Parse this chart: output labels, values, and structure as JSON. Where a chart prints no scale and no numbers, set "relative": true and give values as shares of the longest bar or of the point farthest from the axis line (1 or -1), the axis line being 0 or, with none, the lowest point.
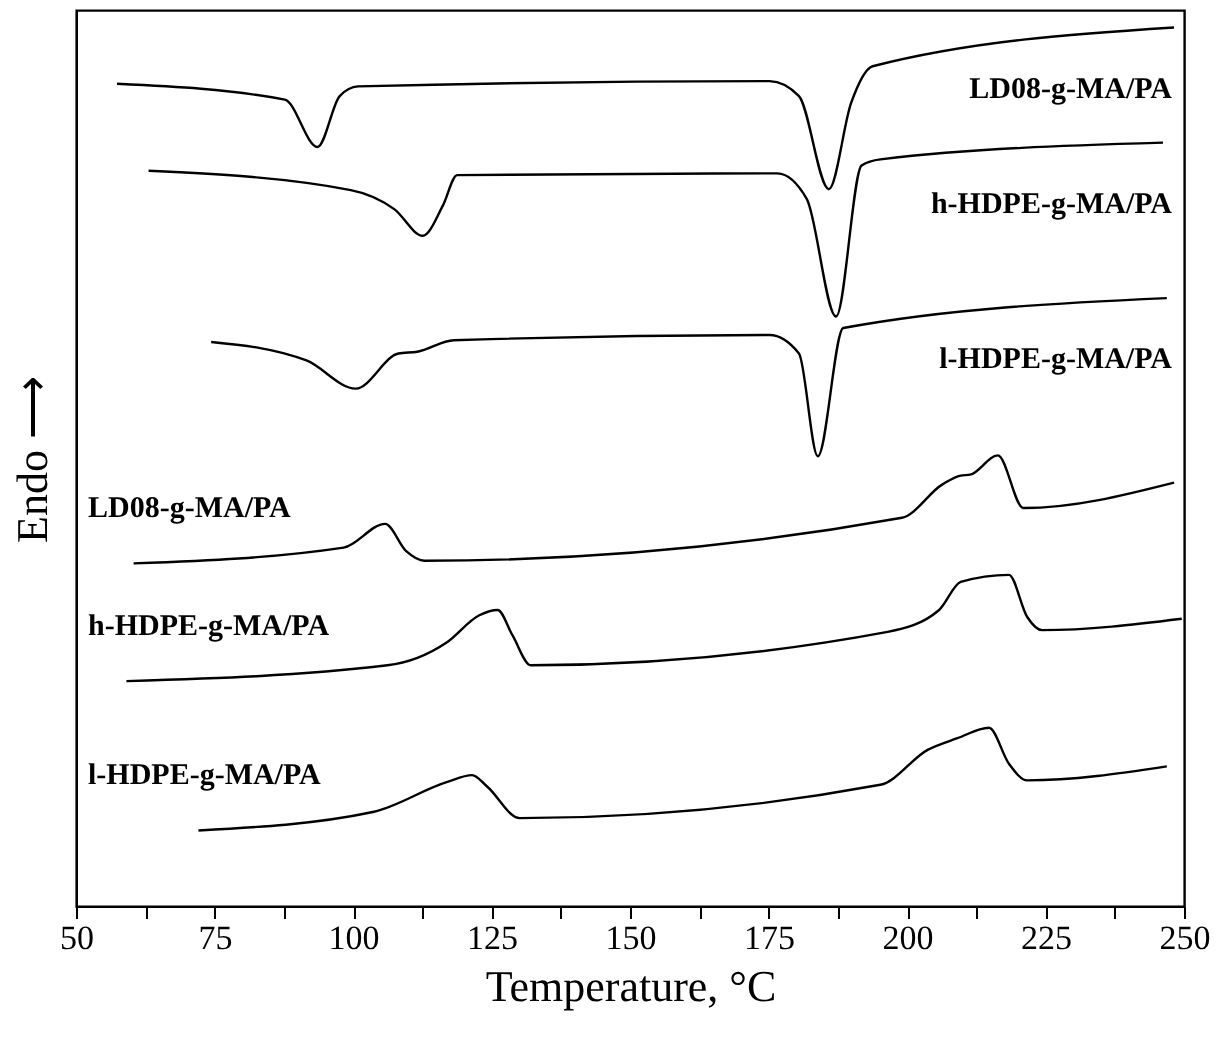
{
  "chart_data": {
    "type": "line",
    "relative": true,
    "xlabel": "Temperature, °C",
    "ylabel": "Endo ⟶",
    "xlim": [
      50,
      250
    ],
    "xticks": [
      50,
      {
        "value": 62.5,
        "label": null
      },
      75,
      {
        "value": 87.5,
        "label": null
      },
      100,
      {
        "value": 112.5,
        "label": null
      },
      125,
      {
        "value": 137.5,
        "label": null
      },
      150,
      {
        "value": 162.5,
        "label": null
      },
      175,
      {
        "value": 187.5,
        "label": null
      },
      200,
      {
        "value": 212.5,
        "label": null
      },
      225,
      {
        "value": 237.5,
        "label": null
      },
      250
    ],
    "grid": false,
    "legend": false,
    "marker": "none",
    "line_style": "solid",
    "series": [
      {
        "name": "LD08-g-MA/PA",
        "color": "#000000",
        "x": [
          57.4,
          87.7,
          93.6,
          97.6,
          100.9,
          175.2,
          180.5,
          185.9,
          189.9,
          193.8,
          248.2
        ],
        "values": [
          0.936,
          0.918,
          0.864,
          0.922,
          0.933,
          0.939,
          0.922,
          0.816,
          0.914,
          0.956,
          1.0
        ]
      },
      {
        "name": "h-HDPE-g-MA/PA",
        "color": "#000000",
        "x": [
          63.1,
          99.6,
          107.5,
          112.6,
          116.2,
          118.8,
          176.6,
          181.9,
          187.2,
          191.8,
          195.2,
          246.2
        ],
        "values": [
          0.837,
          0.815,
          0.793,
          0.763,
          0.797,
          0.832,
          0.834,
          0.805,
          0.671,
          0.843,
          0.85,
          0.869
        ]
      },
      {
        "name": "l-HDPE-g-MA/PA",
        "color": "#000000",
        "x": [
          74.4,
          91.6,
          100.5,
          108.2,
          111.6,
          118.2,
          175.2,
          180.5,
          183.9,
          188.5,
          246.9
        ],
        "values": [
          0.642,
          0.621,
          0.589,
          0.629,
          0.631,
          0.644,
          0.65,
          0.629,
          0.512,
          0.658,
          0.692
        ]
      },
      {
        "name": "LD08-g-MA/PA",
        "color": "#000000",
        "x": [
          60.4,
          98.3,
          105.8,
          109.6,
          112.9,
          199.1,
          206.4,
          209.7,
          211.4,
          216.4,
          221.0,
          248.2
        ],
        "values": [
          0.39,
          0.408,
          0.435,
          0.404,
          0.393,
          0.442,
          0.48,
          0.49,
          0.491,
          0.513,
          0.453,
          0.482
        ]
      },
      {
        "name": "h-HDPE-g-MA/PA",
        "color": "#000000",
        "x": [
          59.1,
          106.2,
          116.9,
          122.8,
          126.1,
          128.8,
          132.1,
          196.5,
          205.8,
          209.7,
          218.4,
          221.7,
          224.4,
          249.6
        ],
        "values": [
          0.256,
          0.274,
          0.3,
          0.331,
          0.337,
          0.308,
          0.274,
          0.312,
          0.337,
          0.369,
          0.377,
          0.329,
          0.314,
          0.327
        ]
      },
      {
        "name": "l-HDPE-g-MA/PA",
        "color": "#000000",
        "x": [
          72.1,
          103.6,
          116.9,
          121.5,
          124.2,
          130.1,
          195.2,
          203.8,
          209.1,
          214.8,
          218.4,
          221.7,
          246.9
        ],
        "values": [
          0.086,
          0.107,
          0.141,
          0.149,
          0.136,
          0.1,
          0.138,
          0.178,
          0.191,
          0.203,
          0.162,
          0.143,
          0.159
        ]
      }
    ]
  }
}
